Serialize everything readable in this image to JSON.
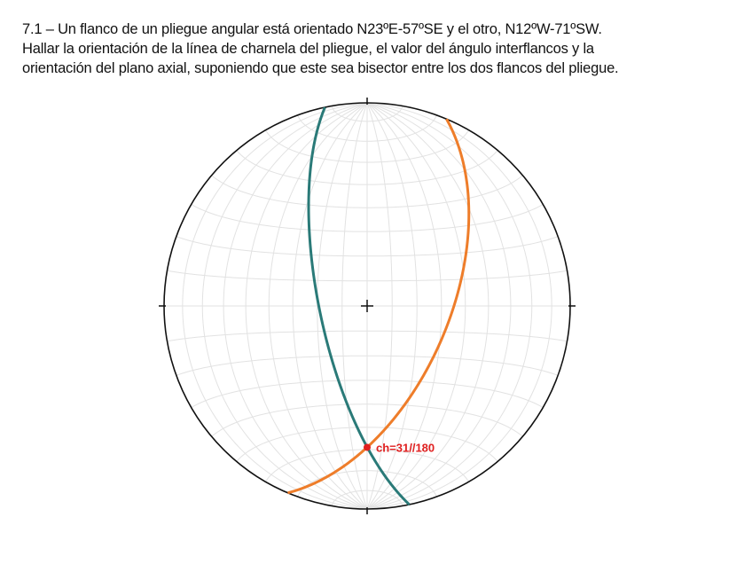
{
  "problem": {
    "lines": [
      "7.1 – Un flanco de un pliegue angular está orientado N23ºE-57ºSE y el otro, N12ºW-71ºSW.",
      "Hallar la orientación de la línea de charnela del pliegue, el valor del ángulo interflancos y la",
      "orientación del plano axial, suponiendo que este sea bisector entre los dos flancos del pliegue."
    ]
  },
  "stereonet": {
    "projection": "equal-area",
    "grid_interval_deg": 10,
    "planes": [
      {
        "label": "N23ºE-57ºSE",
        "strike": 23,
        "dip": 57,
        "dip_direction": 113,
        "color": "#ee7d2a"
      },
      {
        "label": "N12ºW-71ºSW",
        "strike": 348,
        "dip": 71,
        "dip_direction": 258,
        "color": "#2a7a78"
      }
    ],
    "hinge": {
      "label": "ch=31//180",
      "plunge": 31,
      "trend": 180,
      "color": "#e02020"
    }
  }
}
